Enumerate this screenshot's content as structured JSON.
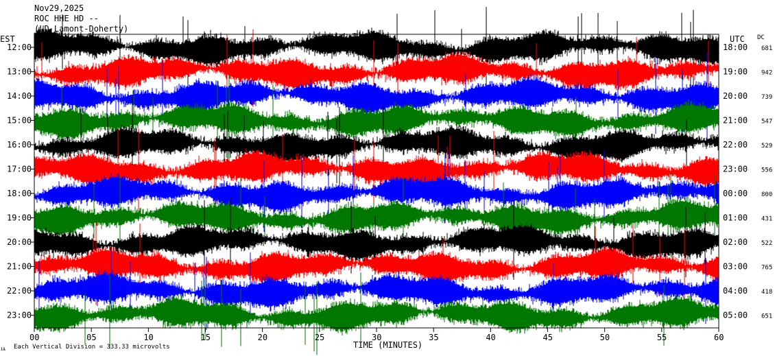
{
  "header": {
    "line1": "Nov29,2025",
    "line2": "ROC HHE HD --",
    "line3": "(LD Lamont-Doherty)"
  },
  "chart_data": {
    "type": "line",
    "title": "",
    "xlabel": "TIME (MINUTES)",
    "x_ticks": [
      "00",
      "05",
      "10",
      "15",
      "20",
      "25",
      "30",
      "35",
      "40",
      "45",
      "50",
      "55",
      "60"
    ],
    "xlim": [
      0,
      60
    ],
    "left_axis_label": "EST",
    "right_axis_label": "UTC",
    "dc_label": "DC",
    "est_hours": [
      "12:00",
      "13:00",
      "14:00",
      "15:00",
      "16:00",
      "17:00",
      "18:00",
      "19:00",
      "20:00",
      "21:00",
      "22:00",
      "23:00"
    ],
    "utc_hours": [
      "18:00",
      "19:00",
      "20:00",
      "21:00",
      "22:00",
      "23:00",
      "00:00",
      "01:00",
      "02:00",
      "03:00",
      "04:00",
      "05:00"
    ],
    "dc_values": [
      "681",
      "942",
      "739",
      "547",
      "529",
      "556",
      "800",
      "431",
      "522",
      "765",
      "418",
      "651"
    ],
    "trace_colors": [
      "#000000",
      "#ff0000",
      "#0000ff",
      "#007700"
    ],
    "footer_note": "Each Vertical Division =  333.33 microvolts"
  }
}
